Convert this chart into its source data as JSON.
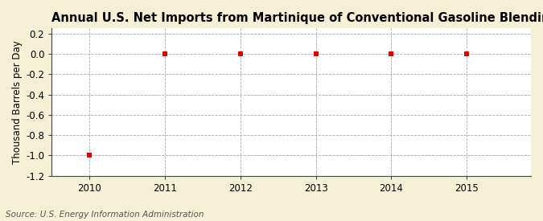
{
  "title": "Annual U.S. Net Imports from Martinique of Conventional Gasoline Blending Components",
  "xlabel": "",
  "ylabel": "Thousand Barrels per Day",
  "figure_bg_color": "#f5efd5",
  "plot_bg_color": "#ffffff",
  "x_values": [
    2010,
    2011,
    2012,
    2013,
    2014,
    2015
  ],
  "y_values": [
    -1.0,
    0.0,
    0.0,
    0.0,
    0.0,
    0.0
  ],
  "ylim": [
    -1.2,
    0.25
  ],
  "xlim": [
    2009.5,
    2015.85
  ],
  "yticks": [
    -1.2,
    -1.0,
    -0.8,
    -0.6,
    -0.4,
    -0.2,
    0.0,
    0.2
  ],
  "ytick_labels": [
    "-1.2",
    "-1.0",
    "-0.8",
    "-0.6",
    "-0.4",
    "-0.2",
    "0.0",
    "0.2"
  ],
  "xticks": [
    2010,
    2011,
    2012,
    2013,
    2014,
    2015
  ],
  "marker_color": "#dd0000",
  "marker_style": "s",
  "marker_size": 4,
  "grid_color": "#aaaaaa",
  "grid_linestyle": "--",
  "grid_linewidth": 0.6,
  "spine_color": "#444444",
  "title_fontsize": 10.5,
  "axis_label_fontsize": 8.5,
  "tick_fontsize": 8.5,
  "source_text": "Source: U.S. Energy Information Administration",
  "source_fontsize": 7.5
}
